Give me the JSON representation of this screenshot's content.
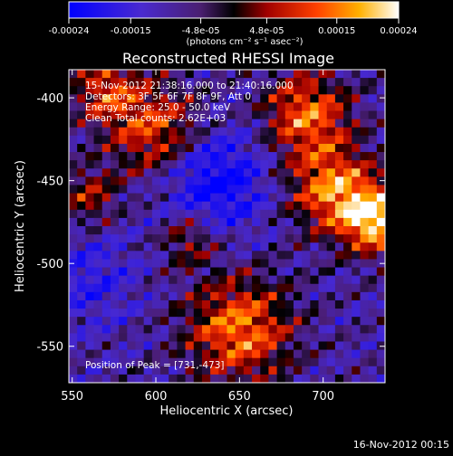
{
  "chart_data": {
    "type": "heatmap",
    "title": "Reconstructed RHESSI Image",
    "xlabel": "Heliocentric X (arcsec)",
    "ylabel": "Heliocentric Y (arcsec)",
    "xlim": [
      548,
      737
    ],
    "ylim": [
      -572,
      -383
    ],
    "x_ticks": [
      550,
      600,
      650,
      700
    ],
    "y_ticks": [
      -400,
      -450,
      -500,
      -550
    ],
    "colorbar": {
      "range": [
        -0.00024,
        0.00024
      ],
      "tick_values": [
        -0.00024,
        -0.00015,
        -4.8e-05,
        4.8e-05,
        0.00015,
        0.00024
      ],
      "tick_labels": [
        "-0.00024",
        "-0.00015",
        "-4.8e-05",
        "4.8e-05",
        "0.00015",
        "0.00024"
      ],
      "units": "(photons cm⁻² s⁻¹ asec⁻²)"
    },
    "annotations": {
      "time_range": "15-Nov-2012 21:38:16.000 to 21:40:16.000",
      "detectors": "Detectors: 3F 5F 6F 7F 8F 9F, Att 0",
      "energy": "Energy Range: 25.0 - 50.0 keV",
      "clean_total": "Clean     Total counts: 2.62E+03",
      "peak": "Position of Peak = [731,-473]"
    },
    "peak": [
      731,
      -473
    ],
    "footer_date": "16-Nov-2012 00:15"
  },
  "colors": {
    "background": "#000000",
    "foreground": "#ffffff",
    "colormap": [
      "#0000ff",
      "#5a32c8",
      "#7030a0",
      "#000000",
      "#a00000",
      "#ff2000",
      "#ff8000",
      "#ffc000",
      "#ffff80",
      "#ffffff"
    ]
  }
}
